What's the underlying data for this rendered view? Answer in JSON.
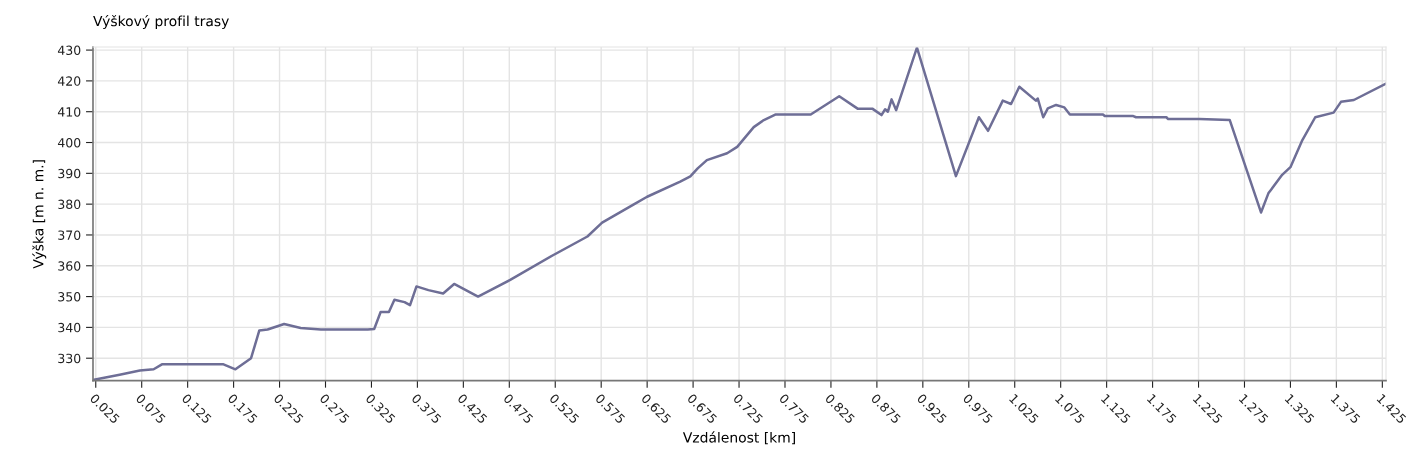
{
  "chart_data": {
    "type": "line",
    "title": "Výškový profil trasy",
    "xlabel": "Vzdálenost [km]",
    "ylabel": "Výška [m n. m.]",
    "x": [
      0.023,
      0.051,
      0.073,
      0.088,
      0.097,
      0.164,
      0.177,
      0.194,
      0.203,
      0.212,
      0.23,
      0.248,
      0.27,
      0.321,
      0.328,
      0.335,
      0.344,
      0.35,
      0.361,
      0.367,
      0.374,
      0.387,
      0.403,
      0.415,
      0.441,
      0.476,
      0.523,
      0.56,
      0.576,
      0.611,
      0.625,
      0.661,
      0.672,
      0.68,
      0.69,
      0.712,
      0.723,
      0.741,
      0.752,
      0.765,
      0.803,
      0.834,
      0.854,
      0.87,
      0.88,
      0.884,
      0.887,
      0.891,
      0.896,
      0.9186,
      0.961,
      0.986,
      0.996,
      1.012,
      1.021,
      1.03,
      1.048,
      1.05,
      1.056,
      1.061,
      1.07,
      1.079,
      1.085,
      1.121,
      1.123,
      1.154,
      1.157,
      1.19,
      1.192,
      1.226,
      1.259,
      1.293,
      1.301,
      1.316,
      1.325,
      1.338,
      1.352,
      1.372,
      1.38,
      1.394,
      1.429
    ],
    "series": [
      {
        "color": "#6e6e96",
        "values": [
          323,
          324.6,
          326,
          326.4,
          328,
          328,
          326.4,
          330,
          339,
          339.3,
          341.1,
          339.8,
          339.3,
          339.3,
          339.5,
          345,
          345,
          349,
          348.2,
          347.2,
          353.3,
          352.1,
          351,
          354.1,
          350,
          355.4,
          363.5,
          369.5,
          374,
          380,
          382.4,
          387.3,
          389,
          391.6,
          394.3,
          396.5,
          398.6,
          405,
          407.3,
          409.1,
          409.1,
          415,
          411,
          411,
          408.9,
          410.8,
          410,
          414,
          410.5,
          430.8,
          389.1,
          408.2,
          403.8,
          413.6,
          412.5,
          418.1,
          413.6,
          414.3,
          408.2,
          411.1,
          412.2,
          411.4,
          409.1,
          409.1,
          408.6,
          408.6,
          408.2,
          408.2,
          407.6,
          407.6,
          407.3,
          377.3,
          383.5,
          389.5,
          392,
          400.8,
          408.2,
          409.7,
          413.2,
          413.8,
          419.1
        ]
      }
    ],
    "xlim": [
      0.022,
      1.429
    ],
    "ylim": [
      322.7,
      431
    ],
    "xticks": [
      0.025,
      0.075,
      0.125,
      0.175,
      0.225,
      0.275,
      0.325,
      0.375,
      0.425,
      0.475,
      0.525,
      0.575,
      0.625,
      0.675,
      0.725,
      0.775,
      0.825,
      0.875,
      0.925,
      0.975,
      1.025,
      1.075,
      1.125,
      1.175,
      1.225,
      1.275,
      1.325,
      1.375,
      1.425
    ],
    "yticks": [
      330,
      340,
      350,
      360,
      370,
      380,
      390,
      400,
      410,
      420,
      430
    ],
    "grid": true,
    "marker": "none",
    "line_style": "solid"
  }
}
